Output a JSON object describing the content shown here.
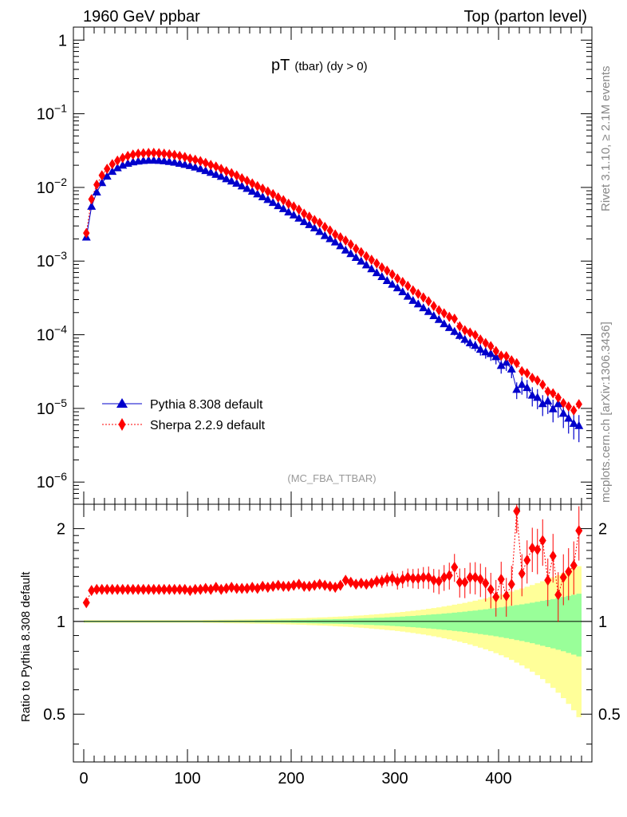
{
  "header": {
    "left": "1960 GeV ppbar",
    "right": "Top (parton level)"
  },
  "side": {
    "rivet": "Rivet 3.1.10, ≥ 2.1M events",
    "mcplots": "mcplots.cern.ch [arXiv:1306.3436]"
  },
  "chart_data": [
    {
      "type": "line",
      "panel": "main",
      "title": "pT",
      "title_sub": "(tbar) (dy > 0)",
      "watermark": "(MC_FBA_TTBAR)",
      "xlim": [
        -10,
        490
      ],
      "ylim": [
        5e-07,
        1.5
      ],
      "yscale": "log",
      "ytick_labels": [
        {
          "value": 1,
          "base": "1",
          "exp": ""
        },
        {
          "value": 0.1,
          "base": "10",
          "exp": "−1"
        },
        {
          "value": 0.01,
          "base": "10",
          "exp": "−2"
        },
        {
          "value": 0.001,
          "base": "10",
          "exp": "−3"
        },
        {
          "value": 0.0001,
          "base": "10",
          "exp": "−4"
        },
        {
          "value": 1e-05,
          "base": "10",
          "exp": "−5"
        },
        {
          "value": 1e-06,
          "base": "10",
          "exp": "−6"
        }
      ],
      "legend_position": "bottom-left",
      "x": [
        2.5,
        7.5,
        12.5,
        17.5,
        22.5,
        27.5,
        32.5,
        37.5,
        42.5,
        47.5,
        52.5,
        57.5,
        62.5,
        67.5,
        72.5,
        77.5,
        82.5,
        87.5,
        92.5,
        97.5,
        102.5,
        107.5,
        112.5,
        117.5,
        122.5,
        127.5,
        132.5,
        137.5,
        142.5,
        147.5,
        152.5,
        157.5,
        162.5,
        167.5,
        172.5,
        177.5,
        182.5,
        187.5,
        192.5,
        197.5,
        202.5,
        207.5,
        212.5,
        217.5,
        222.5,
        227.5,
        232.5,
        237.5,
        242.5,
        247.5,
        252.5,
        257.5,
        262.5,
        267.5,
        272.5,
        277.5,
        282.5,
        287.5,
        292.5,
        297.5,
        302.5,
        307.5,
        312.5,
        317.5,
        322.5,
        327.5,
        332.5,
        337.5,
        342.5,
        347.5,
        352.5,
        357.5,
        362.5,
        367.5,
        372.5,
        377.5,
        382.5,
        387.5,
        392.5,
        397.5,
        402.5,
        407.5,
        412.5,
        417.5,
        422.5,
        427.5,
        432.5,
        437.5,
        442.5,
        447.5,
        452.5,
        457.5,
        462.5,
        467.5,
        472.5,
        477.5
      ],
      "series": [
        {
          "name": "Pythia 8.308 default",
          "color": "#0000cc",
          "marker": "triangle",
          "values": [
            0.0021,
            0.0055,
            0.0086,
            0.0115,
            0.0141,
            0.0164,
            0.0183,
            0.0199,
            0.0211,
            0.022,
            0.0226,
            0.023,
            0.0232,
            0.0232,
            0.0231,
            0.0228,
            0.0223,
            0.0218,
            0.0211,
            0.0204,
            0.0196,
            0.0187,
            0.0178,
            0.0168,
            0.0159,
            0.0149,
            0.014,
            0.013,
            0.0121,
            0.0113,
            0.0104,
            0.0096,
            0.0088,
            0.0081,
            0.0074,
            0.0068,
            0.0062,
            0.0056,
            0.0051,
            0.0046,
            0.0042,
            0.0038,
            0.0034,
            0.0031,
            0.0028,
            0.0025,
            0.0022,
            0.002,
            0.0018,
            0.0016,
            0.0014,
            0.00125,
            0.00111,
            0.00099,
            0.00088,
            0.00078,
            0.00069,
            0.00061,
            0.00054,
            0.00048,
            0.00043,
            0.00038,
            0.00033,
            0.00029,
            0.00026,
            0.00023,
            0.000205,
            0.00018,
            0.00016,
            0.00014,
            0.000124,
            0.00011,
            9.7e-05,
            8.6e-05,
            7.7e-05,
            7.1e-05,
            6.3e-05,
            5.8e-05,
            5.5e-05,
            5e-05,
            3.8e-05,
            4.2e-05,
            3.4e-05,
            1.8e-05,
            2.1e-05,
            1.9e-05,
            1.5e-05,
            1.4e-05,
            1.15e-05,
            1.25e-05,
            9.8e-06,
            1.15e-05,
            8.5e-06,
            7.3e-06,
            6.2e-06,
            5.8e-06
          ]
        },
        {
          "name": "Sherpa 2.2.9 default",
          "color": "#ff0000",
          "marker": "diamond",
          "values": [
            0.0024,
            0.0069,
            0.0109,
            0.0146,
            0.0179,
            0.0207,
            0.0231,
            0.0251,
            0.0267,
            0.0279,
            0.0287,
            0.0291,
            0.0293,
            0.0294,
            0.0292,
            0.0287,
            0.0282,
            0.0276,
            0.0267,
            0.0258,
            0.0246,
            0.0237,
            0.0227,
            0.0215,
            0.0202,
            0.0192,
            0.0178,
            0.0166,
            0.0156,
            0.0145,
            0.0133,
            0.0123,
            0.0113,
            0.0104,
            0.0096,
            0.0088,
            0.0081,
            0.0073,
            0.0067,
            0.006,
            0.0055,
            0.005,
            0.0044,
            0.004,
            0.0036,
            0.0033,
            0.0029,
            0.0026,
            0.0023,
            0.0021,
            0.0019,
            0.00168,
            0.00147,
            0.00132,
            0.00116,
            0.00104,
            0.00093,
            0.00082,
            0.00074,
            0.00066,
            0.00058,
            0.00052,
            0.00046,
            0.0004,
            0.00036,
            0.00032,
            0.000285,
            0.000245,
            0.000215,
            0.000195,
            0.000175,
            0.000165,
            0.00013,
            0.000115,
            0.000107,
            9.9e-05,
            8.6e-05,
            7.7e-05,
            7e-05,
            6e-05,
            5.2e-05,
            5.1e-05,
            4.5e-05,
            4.1e-05,
            3.2e-05,
            3e-05,
            2.6e-05,
            2.4e-05,
            2.1e-05,
            1.7e-05,
            1.6e-05,
            1.4e-05,
            1.18e-05,
            1.06e-05,
            9.4e-06,
            1.14e-05
          ]
        }
      ]
    },
    {
      "type": "line",
      "panel": "ratio",
      "ylabel": "Ratio to Pythia 8.308 default",
      "xlim": [
        -10,
        490
      ],
      "ylim": [
        0.35,
        2.4
      ],
      "yscale": "log",
      "xtick_labels": [
        "0",
        "100",
        "200",
        "300",
        "400"
      ],
      "xtick_values": [
        0,
        100,
        200,
        300,
        400
      ],
      "ytick_labels": [
        "0.5",
        "1",
        "2"
      ],
      "ytick_values": [
        0.5,
        1,
        2
      ],
      "band_colors": {
        "inner": "#99ff99",
        "outer": "#ffff99"
      },
      "reference_value": 1,
      "ratio_values": [
        1.15,
        1.26,
        1.27,
        1.27,
        1.27,
        1.27,
        1.27,
        1.27,
        1.27,
        1.27,
        1.27,
        1.27,
        1.27,
        1.27,
        1.27,
        1.27,
        1.27,
        1.27,
        1.27,
        1.27,
        1.26,
        1.27,
        1.27,
        1.28,
        1.27,
        1.29,
        1.27,
        1.28,
        1.29,
        1.28,
        1.28,
        1.28,
        1.29,
        1.28,
        1.3,
        1.29,
        1.3,
        1.31,
        1.3,
        1.3,
        1.31,
        1.32,
        1.3,
        1.3,
        1.31,
        1.32,
        1.31,
        1.3,
        1.29,
        1.31,
        1.36,
        1.34,
        1.32,
        1.33,
        1.32,
        1.33,
        1.35,
        1.35,
        1.37,
        1.38,
        1.35,
        1.37,
        1.39,
        1.38,
        1.38,
        1.39,
        1.39,
        1.36,
        1.35,
        1.39,
        1.41,
        1.5,
        1.34,
        1.34,
        1.39,
        1.39,
        1.37,
        1.33,
        1.27,
        1.2,
        1.37,
        1.21,
        1.32,
        2.28,
        1.43,
        1.58,
        1.73,
        1.71,
        1.83,
        1.36,
        1.63,
        1.22,
        1.39,
        1.45,
        1.52,
        1.97
      ],
      "band_inner_halfwidth": [
        0.005,
        0.005,
        0.005,
        0.005,
        0.005,
        0.005,
        0.005,
        0.005,
        0.005,
        0.005,
        0.005,
        0.005,
        0.005,
        0.005,
        0.005,
        0.005,
        0.005,
        0.005,
        0.005,
        0.005,
        0.005,
        0.005,
        0.005,
        0.005,
        0.005,
        0.005,
        0.006,
        0.006,
        0.006,
        0.006,
        0.007,
        0.007,
        0.007,
        0.008,
        0.008,
        0.008,
        0.009,
        0.009,
        0.01,
        0.01,
        0.011,
        0.012,
        0.012,
        0.013,
        0.014,
        0.015,
        0.016,
        0.016,
        0.017,
        0.018,
        0.019,
        0.02,
        0.022,
        0.023,
        0.025,
        0.026,
        0.028,
        0.029,
        0.031,
        0.033,
        0.035,
        0.037,
        0.04,
        0.042,
        0.045,
        0.048,
        0.051,
        0.054,
        0.057,
        0.061,
        0.064,
        0.068,
        0.072,
        0.076,
        0.081,
        0.085,
        0.09,
        0.095,
        0.1,
        0.105,
        0.111,
        0.117,
        0.123,
        0.13,
        0.136,
        0.143,
        0.15,
        0.158,
        0.166,
        0.174,
        0.182,
        0.191,
        0.2,
        0.21,
        0.22,
        0.23
      ],
      "band_outer_halfwidth": [
        0.01,
        0.01,
        0.01,
        0.01,
        0.01,
        0.01,
        0.01,
        0.01,
        0.01,
        0.01,
        0.01,
        0.01,
        0.01,
        0.01,
        0.01,
        0.01,
        0.01,
        0.01,
        0.01,
        0.01,
        0.01,
        0.01,
        0.01,
        0.011,
        0.011,
        0.012,
        0.012,
        0.013,
        0.013,
        0.014,
        0.014,
        0.015,
        0.016,
        0.016,
        0.017,
        0.018,
        0.019,
        0.02,
        0.021,
        0.022,
        0.023,
        0.024,
        0.025,
        0.027,
        0.028,
        0.03,
        0.031,
        0.033,
        0.035,
        0.037,
        0.039,
        0.041,
        0.044,
        0.046,
        0.049,
        0.052,
        0.055,
        0.058,
        0.062,
        0.065,
        0.069,
        0.073,
        0.078,
        0.083,
        0.088,
        0.093,
        0.099,
        0.105,
        0.111,
        0.118,
        0.125,
        0.133,
        0.141,
        0.149,
        0.158,
        0.168,
        0.178,
        0.188,
        0.199,
        0.211,
        0.223,
        0.236,
        0.25,
        0.265,
        0.28,
        0.296,
        0.313,
        0.331,
        0.35,
        0.37,
        0.391,
        0.413,
        0.436,
        0.46,
        0.485,
        0.511
      ]
    }
  ]
}
